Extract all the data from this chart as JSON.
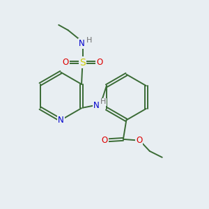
{
  "background_color": "#e8eef2",
  "bond_color": "#3a6b35",
  "atom_colors": {
    "N": "#0000cc",
    "O": "#dd0000",
    "S": "#cccc00",
    "H": "#707070",
    "C": "#3a6b35"
  },
  "figsize": [
    3.0,
    3.0
  ],
  "dpi": 100,
  "xlim": [
    0,
    10
  ],
  "ylim": [
    0,
    10
  ]
}
